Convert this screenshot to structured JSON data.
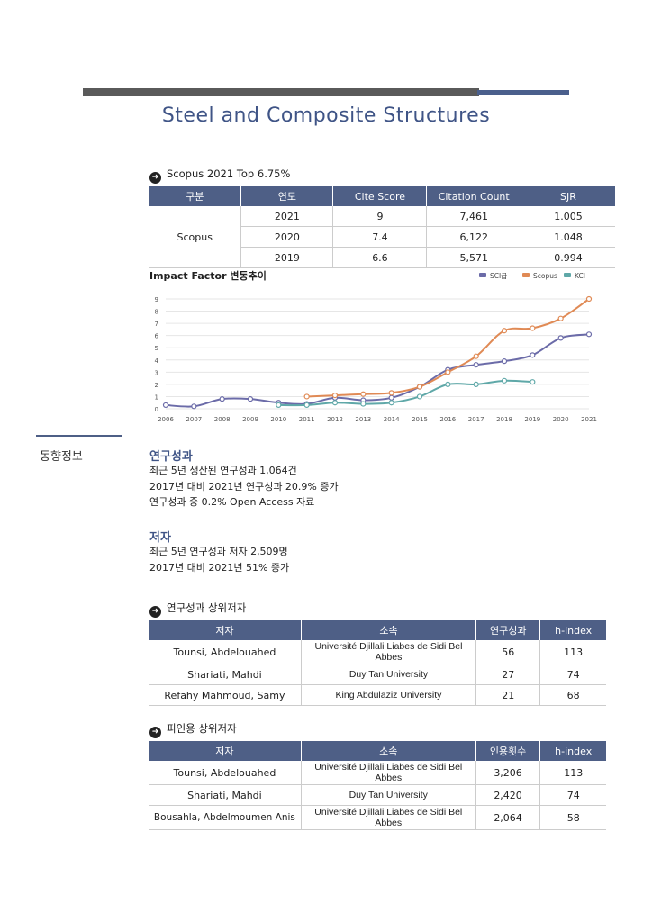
{
  "title": "Steel and Composite Structures",
  "scopus_section": {
    "heading": "Scopus 2021 Top 6.75%",
    "headers": [
      "구분",
      "연도",
      "Cite Score",
      "Citation Count",
      "SJR"
    ],
    "group_label": "Scopus",
    "rows": [
      {
        "year": "2021",
        "cite_score": "9",
        "citation_count": "7,461",
        "sjr": "1.005"
      },
      {
        "year": "2020",
        "cite_score": "7.4",
        "citation_count": "6,122",
        "sjr": "1.048"
      },
      {
        "year": "2019",
        "cite_score": "6.6",
        "citation_count": "5,571",
        "sjr": "0.994"
      }
    ]
  },
  "chart_data": {
    "type": "line",
    "title": "Impact Factor 변동추이",
    "x": [
      "2006",
      "2007",
      "2008",
      "2009",
      "2010",
      "2011",
      "2012",
      "2013",
      "2014",
      "2015",
      "2016",
      "2017",
      "2018",
      "2019",
      "2020",
      "2021"
    ],
    "ylim": [
      0,
      9
    ],
    "yticks": [
      "0",
      "1",
      "2",
      "3",
      "4",
      "5",
      "6",
      "7",
      "8",
      "9"
    ],
    "legend_position": "top-right",
    "grid": true,
    "series": [
      {
        "name": "SCI급",
        "color": "#6b6ba8",
        "values": [
          0.3,
          0.2,
          0.8,
          0.8,
          0.5,
          0.4,
          0.9,
          0.7,
          0.9,
          1.8,
          3.2,
          3.6,
          3.9,
          4.4,
          5.8,
          6.1
        ]
      },
      {
        "name": "Scopus",
        "color": "#e08a55",
        "values": [
          null,
          null,
          null,
          null,
          null,
          1.0,
          1.1,
          1.2,
          1.3,
          1.8,
          3.0,
          4.3,
          6.4,
          6.6,
          7.4,
          9.0
        ]
      },
      {
        "name": "KCI",
        "color": "#5fa8a8",
        "values": [
          null,
          null,
          null,
          null,
          0.3,
          0.3,
          0.5,
          0.4,
          0.5,
          1.0,
          2.0,
          2.0,
          2.3,
          2.2,
          null,
          null
        ]
      }
    ]
  },
  "side_label": "동향정보",
  "research_output": {
    "title": "연구성과",
    "lines": [
      "최근 5년 생산된 연구성과 1,064건",
      "2017년 대비 2021년 연구성과 20.9% 증가",
      "연구성과 중 0.2% Open Access 자료"
    ]
  },
  "authors_summary": {
    "title": "저자",
    "lines": [
      "최근 5년 연구성과 저자 2,509명",
      "2017년 대비 2021년 51% 증가"
    ]
  },
  "top_authors_output": {
    "heading": "연구성과 상위저자",
    "headers": [
      "저자",
      "소속",
      "연구성과",
      "h-index"
    ],
    "rows": [
      {
        "author": "Tounsi, Abdelouahed",
        "affiliation": "Université Djillali Liabes de Sidi Bel Abbes",
        "value": "56",
        "h_index": "113"
      },
      {
        "author": "Shariati, Mahdi",
        "affiliation": "Duy Tan University",
        "value": "27",
        "h_index": "74"
      },
      {
        "author": "Refahy Mahmoud, Samy",
        "affiliation": "King Abdulaziz University",
        "value": "21",
        "h_index": "68"
      }
    ]
  },
  "top_authors_citations": {
    "heading": "피인용 상위저자",
    "headers": [
      "저자",
      "소속",
      "인용횟수",
      "h-index"
    ],
    "rows": [
      {
        "author": "Tounsi, Abdelouahed",
        "affiliation": "Université Djillali Liabes de Sidi Bel Abbes",
        "value": "3,206",
        "h_index": "113"
      },
      {
        "author": "Shariati, Mahdi",
        "affiliation": "Duy Tan University",
        "value": "2,420",
        "h_index": "74"
      },
      {
        "author": "Bousahla, Abdelmoumen Anis",
        "affiliation": "Université Djillali Liabes de Sidi Bel Abbes",
        "value": "2,064",
        "h_index": "58"
      }
    ]
  }
}
